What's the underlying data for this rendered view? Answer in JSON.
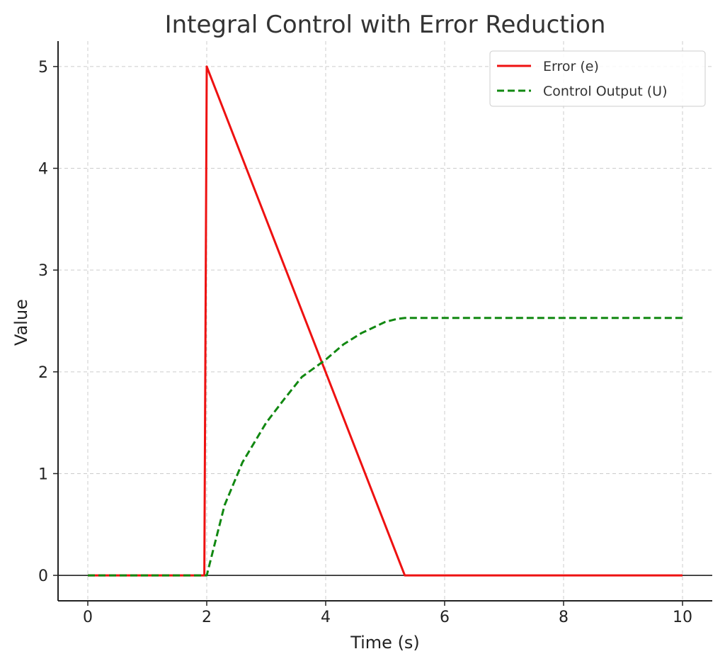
{
  "chart_data": {
    "type": "line",
    "title": "Integral Control with Error Reduction",
    "xlabel": "Time (s)",
    "ylabel": "Value",
    "xlim": [
      -0.5,
      10.5
    ],
    "ylim": [
      -0.25,
      5.25
    ],
    "xticks": [
      0,
      2,
      4,
      6,
      8,
      10
    ],
    "yticks": [
      0,
      1,
      2,
      3,
      4,
      5
    ],
    "grid": true,
    "legend_position": "top-right",
    "series": [
      {
        "name": "Error (e)",
        "color": "#ee1111",
        "style": "solid",
        "x": [
          0,
          1.96,
          2.0,
          5.33,
          10
        ],
        "y": [
          0,
          0,
          5.0,
          0,
          0
        ]
      },
      {
        "name": "Control Output (U)",
        "color": "#118811",
        "style": "dashed",
        "x": [
          0,
          2.0,
          2.3,
          2.6,
          3.0,
          3.3,
          3.6,
          4.0,
          4.3,
          4.6,
          5.0,
          5.2,
          5.33,
          6,
          8,
          10
        ],
        "y": [
          0,
          0,
          0.69,
          1.11,
          1.5,
          1.73,
          1.95,
          2.12,
          2.27,
          2.38,
          2.49,
          2.52,
          2.53,
          2.53,
          2.53,
          2.53
        ]
      }
    ]
  }
}
